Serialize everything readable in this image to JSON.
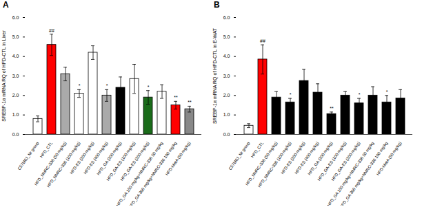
{
  "chart_data": [
    {
      "type": "bar",
      "title": "A",
      "y_label": "SREBP-1α mRNA RQ of HFD-CTL in Liver",
      "categories": [
        "C57bl6J_Nr group",
        "HFD_CTL",
        "HFD_NMRC-336 (50 mg/kg)",
        "HFD_NMRC-336 (100 mg/kg)",
        "HFD-ES (200 mg/kg)",
        "HFD-ES (400 mg/kg)",
        "HFD_GA (200 mg/kg)",
        "HFD_GA-ES (100 mg/kg)",
        "HFD_GA-ES (200 mg/kg)",
        "HFD_GA 150 mg/kg+NMRC-336 50 mg/kg",
        "HFD_GA 300 mg/kg+NMRC-336 100 mg/kg",
        "HFD-MetA (50 mg/kg)"
      ],
      "values": [
        0.8,
        4.6,
        3.1,
        2.1,
        4.2,
        2.0,
        2.4,
        2.85,
        1.9,
        2.2,
        1.5,
        1.3
      ],
      "errors": [
        0.15,
        0.55,
        0.35,
        0.2,
        0.35,
        0.3,
        0.55,
        0.75,
        0.35,
        0.35,
        0.2,
        0.15
      ],
      "significance": [
        null,
        "##",
        null,
        "*",
        null,
        "*",
        null,
        null,
        "*",
        null,
        "**",
        "**"
      ],
      "colors": [
        "white",
        "red",
        "#aaaaaa",
        "white",
        "white",
        "#aaaaaa",
        "black",
        "white",
        "#1a6b1a",
        "white",
        "red",
        "#888888"
      ],
      "ylim": [
        0,
        6
      ],
      "yticks": [
        0,
        1,
        2,
        3,
        4,
        5,
        6
      ],
      "grid": false
    },
    {
      "type": "bar",
      "title": "B",
      "y_label": "SREBP-1α mRNA RQ of HFD-CTL in E-WAT",
      "categories": [
        "C57bl6J_Nr group",
        "HFD_CTL",
        "HFD_NMRC-336 (50 mg/kg)",
        "HFD_NMRC-336 (100 mg/kg)",
        "HFD-ES (200 mg/kg)",
        "HFD-ES (400 mg/kg)",
        "HFD_GA (200 mg/kg)",
        "HFD_GA-ES (100 mg/kg)",
        "HFD_GA-ES (200 mg/kg)",
        "HFD_GA 150 mg/kg+NMRC-336 50 mg/kg",
        "HFD_GA 300 mg/kg+NMRC-336 100 mg/kg",
        "HFD-MetA (50 mg/kg)"
      ],
      "values": [
        0.45,
        3.85,
        1.9,
        1.65,
        2.75,
        2.15,
        1.05,
        2.0,
        1.6,
        2.0,
        1.65,
        1.85
      ],
      "errors": [
        0.1,
        0.75,
        0.3,
        0.2,
        0.6,
        0.45,
        0.1,
        0.2,
        0.25,
        0.45,
        0.35,
        0.45
      ],
      "significance": [
        null,
        "##",
        null,
        "*",
        null,
        null,
        "**",
        null,
        "*",
        null,
        "*",
        null
      ],
      "colors": [
        "white",
        "red",
        "black",
        "black",
        "black",
        "black",
        "black",
        "black",
        "black",
        "black",
        "black",
        "black"
      ],
      "ylim": [
        0,
        6
      ],
      "yticks": [
        0,
        1,
        2,
        3,
        4,
        5,
        6
      ],
      "grid": false
    }
  ]
}
